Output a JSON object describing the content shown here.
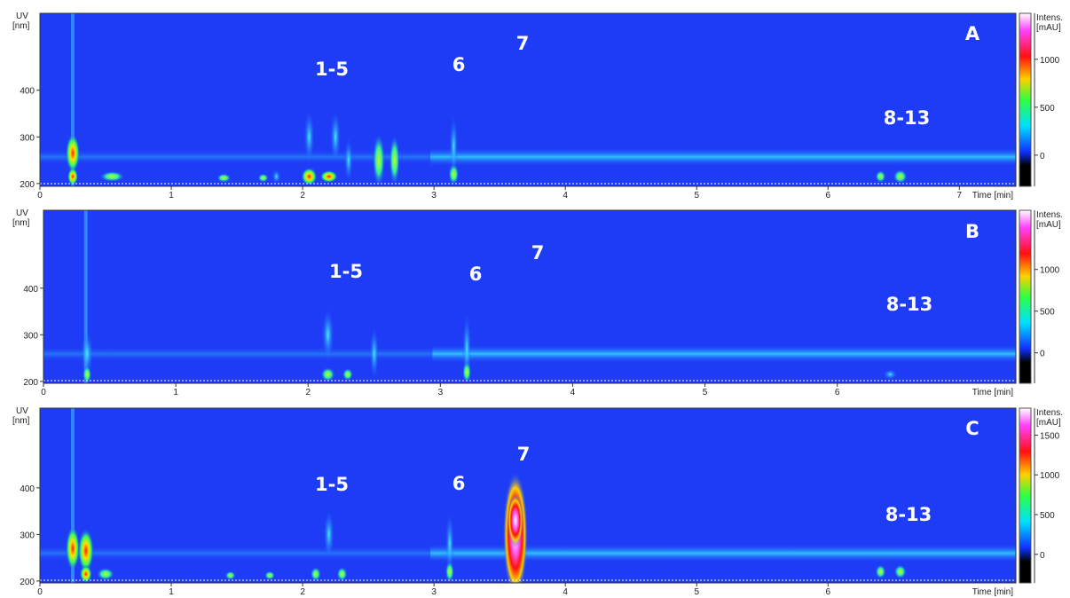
{
  "panels": [
    {
      "label": "A",
      "y_axis_label": [
        "UV",
        "[nm]"
      ],
      "ylim": [
        194,
        565
      ],
      "yticks": [
        200,
        300,
        400
      ],
      "x_axis_label": "Time [min]",
      "xlim": [
        0,
        7.43
      ],
      "xticks": [
        0,
        1,
        2,
        3,
        4,
        5,
        6,
        7
      ],
      "colorbar": {
        "label": [
          "Intens.",
          "[mAU]"
        ],
        "lim": [
          -325,
          1480
        ],
        "ticks": [
          0,
          500,
          1000
        ]
      },
      "annotations": [
        "1-5",
        "6",
        "7",
        "8-13"
      ]
    },
    {
      "label": "B",
      "y_axis_label": [
        "UV",
        "[nm]"
      ],
      "ylim": [
        196,
        567
      ],
      "yticks": [
        200,
        300,
        400
      ],
      "x_axis_label": "Time [min]",
      "xlim": [
        0,
        7.35
      ],
      "xticks": [
        0,
        1,
        2,
        3,
        4,
        5,
        6
      ],
      "colorbar": {
        "label": [
          "Intens.",
          "[mAU]"
        ],
        "lim": [
          -365,
          1710
        ],
        "ticks": [
          0,
          500,
          1000
        ]
      },
      "annotations": [
        "1-5",
        "6",
        "7",
        "8-13"
      ]
    },
    {
      "label": "C",
      "y_axis_label": [
        "UV",
        "[nm]"
      ],
      "ylim": [
        196,
        571
      ],
      "yticks": [
        200,
        300,
        400
      ],
      "x_axis_label": "Time [min]",
      "xlim": [
        0,
        7.43
      ],
      "xticks": [
        0,
        1,
        2,
        3,
        4,
        5,
        6
      ],
      "colorbar": {
        "label": [
          "Intens.",
          "[mAU]"
        ],
        "lim": [
          -360,
          1840
        ],
        "ticks": [
          0,
          500,
          1000,
          1500
        ]
      },
      "annotations": [
        "1-5",
        "6",
        "7",
        "8-13"
      ]
    }
  ]
}
